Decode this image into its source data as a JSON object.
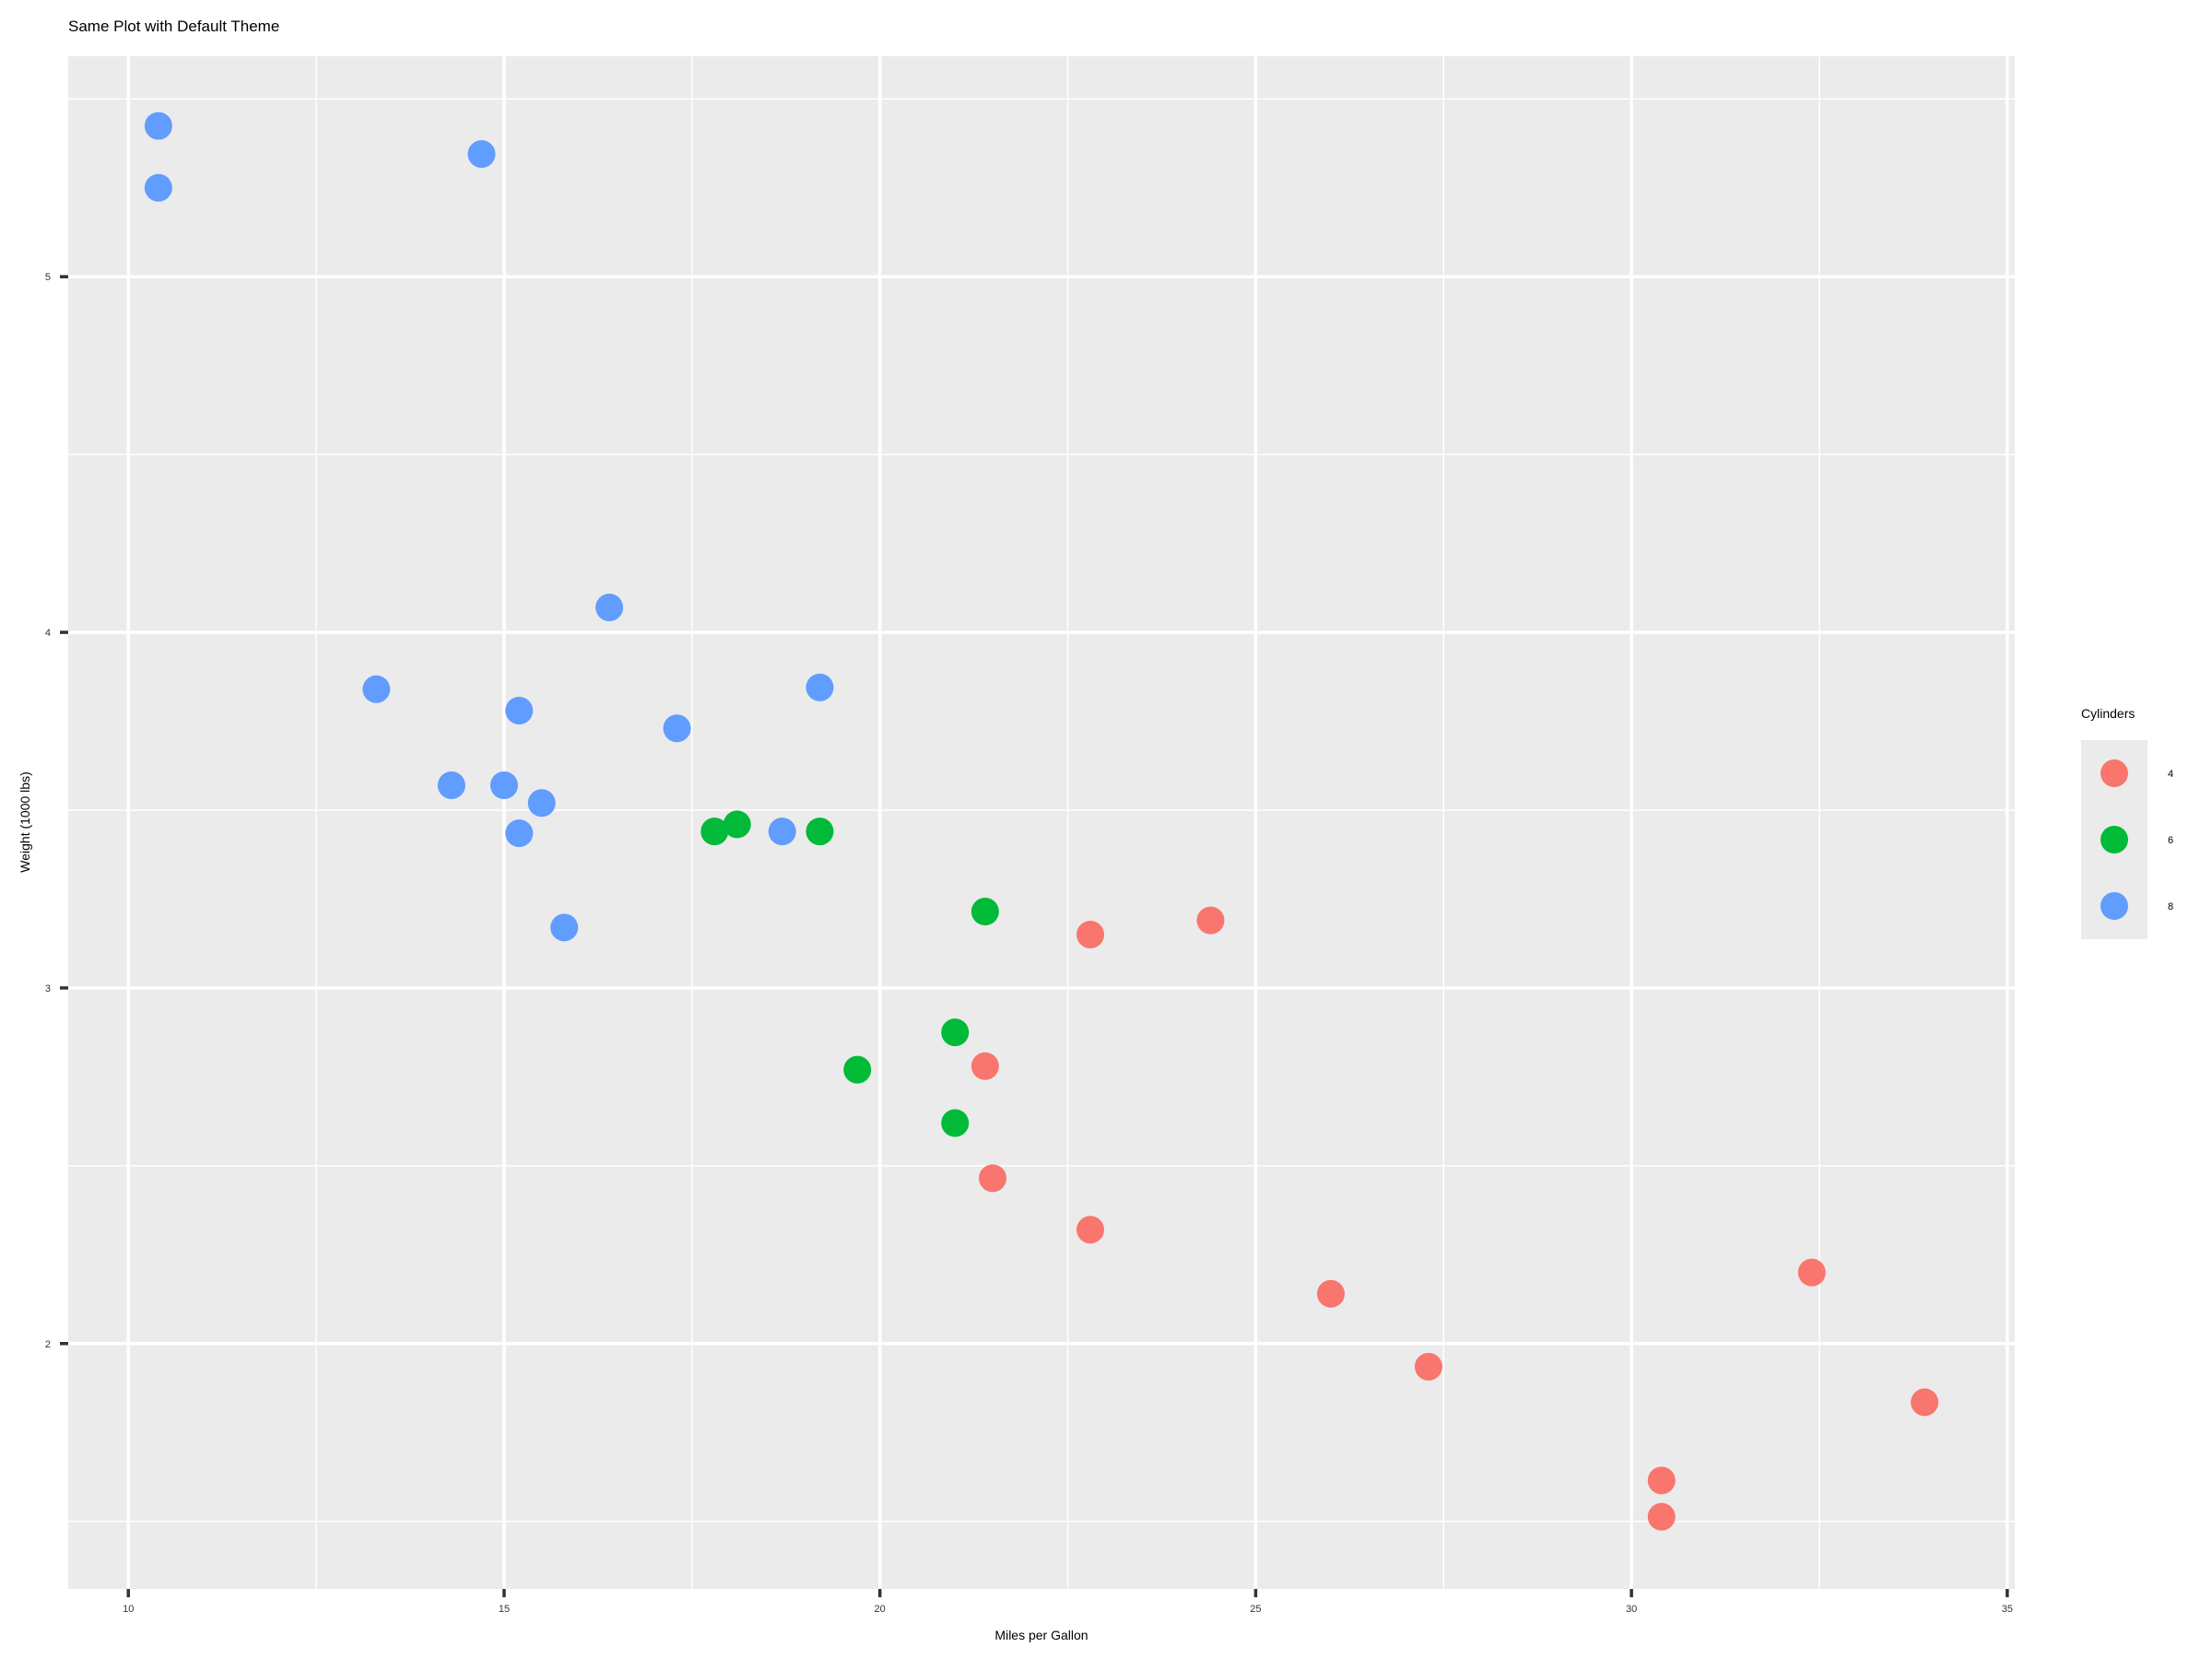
{
  "chart_data": {
    "type": "scatter",
    "title": "Same Plot with Default Theme",
    "xlabel": "Miles per Gallon",
    "ylabel": "Weight (1000 lbs)",
    "xlim": [
      9.2,
      35.1
    ],
    "ylim": [
      1.31,
      5.62
    ],
    "x_ticks": [
      10,
      15,
      20,
      25,
      30,
      35
    ],
    "x_tick_labels": [
      "10",
      "15",
      "20",
      "25",
      "30",
      "35"
    ],
    "y_ticks": [
      2,
      3,
      4,
      5
    ],
    "y_tick_labels": [
      "2",
      "3",
      "4",
      "5"
    ],
    "grid": true,
    "legend": {
      "title": "Cylinders",
      "position": "right",
      "entries": [
        {
          "label": "4",
          "color": "#F8766D"
        },
        {
          "label": "6",
          "color": "#00BA38"
        },
        {
          "label": "8",
          "color": "#619CFF"
        }
      ]
    },
    "series": [
      {
        "name": "4",
        "color": "#F8766D",
        "points": [
          {
            "x": 22.8,
            "y": 2.32
          },
          {
            "x": 24.4,
            "y": 3.19
          },
          {
            "x": 22.8,
            "y": 3.15
          },
          {
            "x": 32.4,
            "y": 2.2
          },
          {
            "x": 30.4,
            "y": 1.615
          },
          {
            "x": 33.9,
            "y": 1.835
          },
          {
            "x": 21.5,
            "y": 2.465
          },
          {
            "x": 27.3,
            "y": 1.935
          },
          {
            "x": 26.0,
            "y": 2.14
          },
          {
            "x": 30.4,
            "y": 1.513
          },
          {
            "x": 21.4,
            "y": 2.78
          }
        ]
      },
      {
        "name": "6",
        "color": "#00BA38",
        "points": [
          {
            "x": 21.0,
            "y": 2.62
          },
          {
            "x": 21.0,
            "y": 2.875
          },
          {
            "x": 21.4,
            "y": 3.215
          },
          {
            "x": 18.1,
            "y": 3.46
          },
          {
            "x": 19.2,
            "y": 3.44
          },
          {
            "x": 17.8,
            "y": 3.44
          },
          {
            "x": 19.7,
            "y": 2.77
          }
        ]
      },
      {
        "name": "8",
        "color": "#619CFF",
        "points": [
          {
            "x": 18.7,
            "y": 3.44
          },
          {
            "x": 14.3,
            "y": 3.57
          },
          {
            "x": 16.4,
            "y": 4.07
          },
          {
            "x": 17.3,
            "y": 3.73
          },
          {
            "x": 15.2,
            "y": 3.78
          },
          {
            "x": 10.4,
            "y": 5.25
          },
          {
            "x": 10.4,
            "y": 5.424
          },
          {
            "x": 14.7,
            "y": 5.345
          },
          {
            "x": 15.5,
            "y": 3.52
          },
          {
            "x": 15.2,
            "y": 3.435
          },
          {
            "x": 13.3,
            "y": 3.84
          },
          {
            "x": 19.2,
            "y": 3.845
          },
          {
            "x": 15.8,
            "y": 3.17
          },
          {
            "x": 15.0,
            "y": 3.57
          }
        ]
      }
    ]
  }
}
